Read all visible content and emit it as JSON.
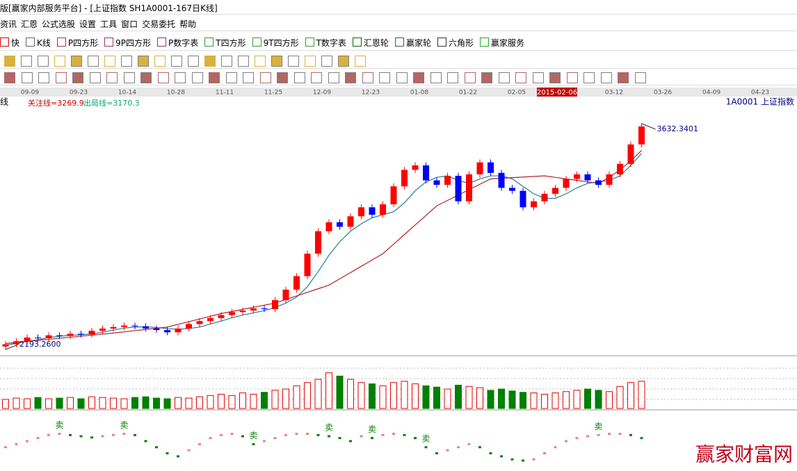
{
  "window": {
    "title": "版[赢家内部服务平台] - [上证指数  SH1A0001-167日K线]"
  },
  "menu": [
    "资讯",
    "汇恩",
    "公式选股",
    "设置",
    "工具",
    "窗口",
    "交易委托",
    "帮助"
  ],
  "toolbar": [
    "快",
    "K线",
    "P四方形",
    "9P四方形",
    "P数字表",
    "T四方形",
    "9T四方形",
    "T数字表",
    "汇恩轮",
    "赢家轮",
    "六角形",
    "赢家服务"
  ],
  "date_strip": [
    "09-09",
    "09-23",
    "10-14",
    "10-28",
    "11-11",
    "11-25",
    "12-09",
    "12-23",
    "01-08",
    "01-22",
    "02-05",
    "03-12",
    "03-26",
    "04-09",
    "04-23"
  ],
  "cursor_date": "2015-02-06",
  "chart_data": {
    "type": "candlestick",
    "panel_label": "线",
    "focus_line": "关注线=3269.9",
    "exit_line": "出局线=3170.3",
    "symbol": "1A0001  上证指数",
    "max_label": "3632.3401",
    "min_label": "2193.2600",
    "watermark": "赢家财富网",
    "ylim": [
      2128,
      3822
    ],
    "open": [
      2180,
      2195,
      2215,
      2240,
      2235,
      2255,
      2250,
      2265,
      2260,
      2285,
      2300,
      2310,
      2320,
      2315,
      2300,
      2290,
      2275,
      2300,
      2330,
      2350,
      2370,
      2390,
      2410,
      2420,
      2435,
      2430,
      2490,
      2560,
      2650,
      2800,
      2950,
      3010,
      2980,
      3050,
      3110,
      3060,
      3130,
      3250,
      3360,
      3390,
      3290,
      3260,
      3320,
      3150,
      3330,
      3410,
      3340,
      3240,
      3220,
      3110,
      3150,
      3200,
      3240,
      3300,
      3330,
      3290,
      3260,
      3330,
      3400,
      3530
    ],
    "high": [
      2215,
      2235,
      2260,
      2260,
      2275,
      2275,
      2285,
      2285,
      2305,
      2320,
      2330,
      2340,
      2340,
      2335,
      2320,
      2310,
      2320,
      2350,
      2370,
      2390,
      2410,
      2430,
      2440,
      2455,
      2455,
      2510,
      2580,
      2670,
      2820,
      2970,
      3030,
      3030,
      3070,
      3130,
      3130,
      3150,
      3270,
      3380,
      3410,
      3410,
      3310,
      3340,
      3340,
      3350,
      3430,
      3430,
      3360,
      3260,
      3240,
      3170,
      3220,
      3260,
      3320,
      3350,
      3350,
      3310,
      3350,
      3420,
      3550,
      3670
    ],
    "low": [
      2160,
      2175,
      2195,
      2215,
      2215,
      2230,
      2230,
      2240,
      2240,
      2265,
      2280,
      2290,
      2295,
      2280,
      2270,
      2255,
      2255,
      2280,
      2310,
      2330,
      2350,
      2370,
      2390,
      2400,
      2410,
      2410,
      2470,
      2540,
      2630,
      2780,
      2930,
      2960,
      2960,
      3030,
      3040,
      3040,
      3110,
      3230,
      3340,
      3270,
      3240,
      3240,
      3130,
      3130,
      3310,
      3320,
      3220,
      3200,
      3090,
      3090,
      3130,
      3180,
      3220,
      3280,
      3270,
      3240,
      3240,
      3310,
      3380,
      3510
    ],
    "close": [
      2195,
      2215,
      2240,
      2235,
      2255,
      2250,
      2265,
      2260,
      2285,
      2300,
      2310,
      2320,
      2315,
      2300,
      2290,
      2275,
      2300,
      2330,
      2350,
      2370,
      2390,
      2410,
      2420,
      2435,
      2430,
      2490,
      2560,
      2650,
      2800,
      2950,
      3010,
      2980,
      3050,
      3110,
      3060,
      3130,
      3250,
      3360,
      3390,
      3290,
      3260,
      3320,
      3150,
      3330,
      3410,
      3340,
      3240,
      3220,
      3110,
      3150,
      3200,
      3240,
      3300,
      3330,
      3290,
      3260,
      3330,
      3400,
      3530,
      3650
    ],
    "up_color": "#ff0000",
    "down_color": "#0000ff",
    "ma_short": {
      "color": "#1e7fa0",
      "values": [
        2190,
        2200,
        2215,
        2225,
        2240,
        2248,
        2255,
        2258,
        2265,
        2275,
        2290,
        2303,
        2310,
        2312,
        2307,
        2300,
        2295,
        2300,
        2310,
        2330,
        2350,
        2372,
        2390,
        2405,
        2420,
        2440,
        2470,
        2510,
        2580,
        2680,
        2790,
        2880,
        2950,
        3000,
        3040,
        3060,
        3080,
        3140,
        3220,
        3280,
        3310,
        3320,
        3290,
        3270,
        3300,
        3320,
        3320,
        3300,
        3250,
        3200,
        3170,
        3170,
        3200,
        3240,
        3270,
        3280,
        3290,
        3320,
        3390,
        3470
      ]
    },
    "ma_long": {
      "color": "#b22222",
      "values": [
        2200,
        2207,
        2214,
        2221,
        2228,
        2235,
        2242,
        2249,
        2256,
        2263,
        2270,
        2278,
        2286,
        2294,
        2302,
        2310,
        2328,
        2346,
        2364,
        2382,
        2400,
        2414,
        2428,
        2442,
        2456,
        2470,
        2494,
        2518,
        2542,
        2566,
        2590,
        2632,
        2674,
        2716,
        2758,
        2800,
        2864,
        2928,
        2992,
        3056,
        3120,
        3156,
        3192,
        3228,
        3264,
        3300,
        3304,
        3308,
        3312,
        3316,
        3320,
        3310,
        3300,
        3290,
        3280,
        3270,
        3310,
        3360,
        3420,
        3490
      ]
    },
    "volume": {
      "ylim": [
        0,
        75
      ],
      "up_color": "#e00000",
      "down_color": "#008000",
      "values": [
        14,
        16,
        15,
        17,
        15,
        16,
        17,
        15,
        18,
        17,
        16,
        15,
        17,
        18,
        16,
        15,
        17,
        16,
        18,
        20,
        22,
        20,
        24,
        22,
        25,
        28,
        30,
        35,
        40,
        45,
        55,
        50,
        45,
        40,
        38,
        35,
        40,
        42,
        38,
        35,
        33,
        30,
        36,
        34,
        32,
        28,
        30,
        27,
        25,
        24,
        22,
        24,
        26,
        28,
        30,
        28,
        26,
        34,
        40,
        42
      ]
    },
    "indicator": {
      "ylim": [
        -40,
        40
      ],
      "up_color": "#f08080",
      "down_color": "#008000",
      "values": [
        -10,
        -5,
        0,
        5,
        10,
        12,
        10,
        8,
        6,
        8,
        10,
        12,
        10,
        0,
        -10,
        -20,
        -25,
        -15,
        -5,
        5,
        10,
        12,
        8,
        -5,
        0,
        5,
        10,
        12,
        12,
        10,
        8,
        5,
        0,
        8,
        5,
        10,
        12,
        10,
        5,
        -10,
        -20,
        -15,
        -10,
        -5,
        -10,
        -20,
        -25,
        -30,
        -32,
        -30,
        -20,
        -10,
        0,
        5,
        8,
        10,
        12,
        12,
        10,
        5
      ],
      "signal_label": "卖",
      "signals": [
        5,
        11,
        23,
        30,
        34,
        39,
        55
      ]
    }
  }
}
